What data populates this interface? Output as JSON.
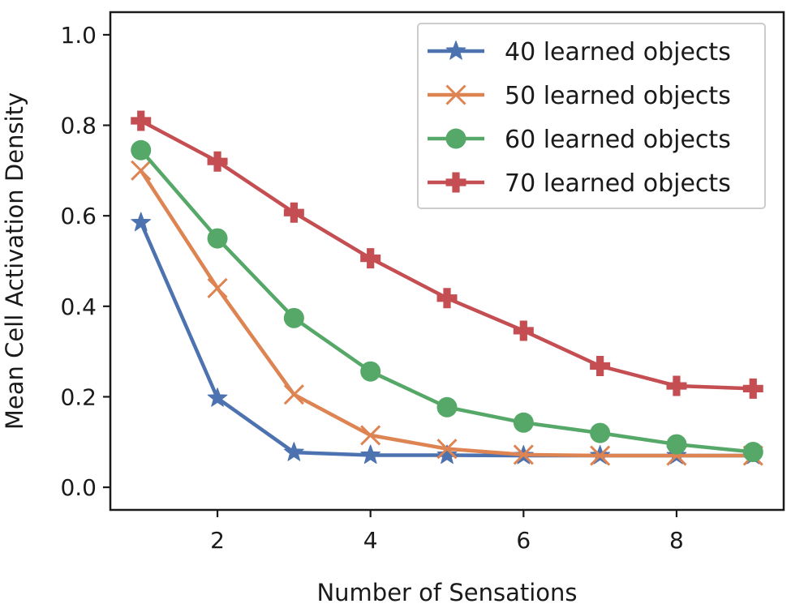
{
  "chart_data": {
    "type": "line",
    "title": "",
    "xlabel": "Number of Sensations",
    "ylabel": "Mean Cell Activation Density",
    "xlim": [
      0.6,
      9.4
    ],
    "ylim": [
      -0.05,
      1.05
    ],
    "xticks": [
      2,
      4,
      6,
      8
    ],
    "yticks": [
      0.0,
      0.2,
      0.4,
      0.6,
      0.8,
      1.0
    ],
    "xtick_labels": [
      "2",
      "4",
      "6",
      "8"
    ],
    "ytick_labels": [
      "0.0",
      "0.2",
      "0.4",
      "0.6",
      "0.8",
      "1.0"
    ],
    "grid": false,
    "legend_position": "top-right",
    "x": [
      1,
      2,
      3,
      4,
      5,
      6,
      7,
      8,
      9
    ],
    "series": [
      {
        "name": "40 learned objects",
        "color": "#4c72b0",
        "marker": "star",
        "values": [
          0.585,
          0.197,
          0.077,
          0.071,
          0.071,
          0.07,
          0.07,
          0.07,
          0.07
        ]
      },
      {
        "name": "50 learned objects",
        "color": "#dd8452",
        "marker": "x",
        "values": [
          0.7,
          0.44,
          0.205,
          0.115,
          0.085,
          0.072,
          0.07,
          0.07,
          0.07
        ]
      },
      {
        "name": "60 learned objects",
        "color": "#55a868",
        "marker": "circle",
        "values": [
          0.745,
          0.55,
          0.374,
          0.256,
          0.177,
          0.143,
          0.12,
          0.095,
          0.078
        ]
      },
      {
        "name": "70 learned objects",
        "color": "#c44e52",
        "marker": "plus",
        "values": [
          0.81,
          0.72,
          0.607,
          0.506,
          0.418,
          0.346,
          0.268,
          0.224,
          0.218
        ]
      }
    ]
  }
}
